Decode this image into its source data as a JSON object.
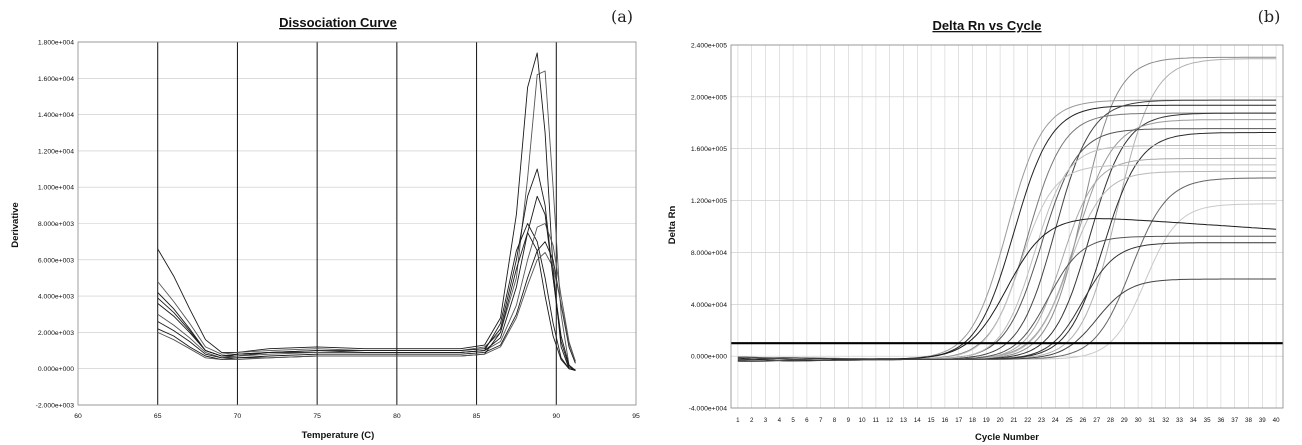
{
  "chart_data": [
    {
      "type": "line",
      "title": "Dissociation Curve",
      "panel_label": "(a)",
      "xlabel": "Temperature (C)",
      "ylabel": "Derivative",
      "xlim": [
        60,
        95
      ],
      "ylim": [
        -2000,
        18000
      ],
      "xticks": [
        "60",
        "65",
        "70",
        "75",
        "80",
        "85",
        "90",
        "95"
      ],
      "yticks": [
        "-2.000e+003",
        "0.000e+000",
        "2.000e+003",
        "4.000e+003",
        "6.000e+003",
        "8.000e+003",
        "1.000e+004",
        "1.200e+004",
        "1.400e+004",
        "1.600e+004",
        "1.800e+004"
      ],
      "vertical_lines_at": [
        65,
        70,
        75,
        80,
        85,
        90
      ],
      "grid": "horizontal",
      "series": [
        {
          "x": [
            65,
            66,
            67,
            68,
            69,
            70,
            72,
            75,
            78,
            80,
            82,
            84,
            85.5,
            86.5,
            87.5,
            88.2,
            88.8,
            89.3,
            89.8,
            90.3,
            90.8,
            91.2
          ],
          "y": [
            6600,
            5100,
            3300,
            1600,
            900,
            900,
            1100,
            1200,
            1100,
            1100,
            1100,
            1100,
            1300,
            2800,
            8500,
            15500,
            17400,
            13000,
            5500,
            1200,
            0,
            -100
          ]
        },
        {
          "x": [
            65,
            66,
            67,
            68,
            69,
            70,
            72,
            75,
            78,
            80,
            82,
            84,
            85.5,
            86.5,
            87.5,
            88.2,
            88.8,
            89.3,
            89.8,
            90.3,
            90.8,
            91.2
          ],
          "y": [
            4800,
            3700,
            2500,
            1200,
            800,
            900,
            1000,
            1100,
            1000,
            1000,
            1000,
            1000,
            1200,
            2000,
            5000,
            10500,
            16200,
            16400,
            10000,
            3000,
            200,
            -100
          ]
        },
        {
          "x": [
            65,
            66,
            67,
            68,
            69,
            70,
            72,
            75,
            78,
            80,
            82,
            84,
            85.5,
            86.5,
            87.5,
            88.2,
            88.8,
            89.3,
            89.8,
            90.3,
            90.8,
            91.2
          ],
          "y": [
            4200,
            3300,
            2200,
            1000,
            700,
            800,
            900,
            1000,
            1000,
            1000,
            1000,
            1000,
            1100,
            2200,
            6000,
            9500,
            11000,
            9000,
            5000,
            1500,
            100,
            -100
          ]
        },
        {
          "x": [
            65,
            66,
            67,
            68,
            69,
            70,
            72,
            75,
            78,
            80,
            82,
            84,
            85.5,
            86.5,
            87.5,
            88.2,
            88.8,
            89.3,
            89.8,
            90.3,
            90.8,
            91.2
          ],
          "y": [
            3600,
            2900,
            2000,
            1000,
            700,
            700,
            900,
            900,
            900,
            900,
            900,
            900,
            1000,
            2500,
            6500,
            8000,
            7000,
            5000,
            2500,
            600,
            0,
            -100
          ]
        },
        {
          "x": [
            65,
            66,
            67,
            68,
            69,
            70,
            72,
            75,
            78,
            80,
            82,
            84,
            85.5,
            86.5,
            87.5,
            88.2,
            88.8,
            89.3,
            89.8,
            90.3,
            90.8,
            91.2
          ],
          "y": [
            3000,
            2400,
            1700,
            900,
            600,
            700,
            800,
            900,
            900,
            900,
            900,
            900,
            1000,
            1500,
            3500,
            6000,
            7800,
            8000,
            6800,
            4000,
            1500,
            400
          ]
        },
        {
          "x": [
            65,
            66,
            67,
            68,
            69,
            70,
            72,
            75,
            78,
            80,
            82,
            84,
            85.5,
            86.5,
            87.5,
            88.2,
            88.8,
            89.3,
            89.8,
            90.3,
            90.8,
            91.2
          ],
          "y": [
            2600,
            2100,
            1500,
            800,
            600,
            600,
            700,
            800,
            800,
            800,
            800,
            800,
            900,
            1300,
            3000,
            5000,
            6500,
            7000,
            6000,
            3500,
            1200,
            300
          ]
        },
        {
          "x": [
            65,
            66,
            67,
            68,
            69,
            70,
            72,
            75,
            78,
            80,
            82,
            84,
            85.5,
            86.5,
            87.5,
            88.2,
            88.8,
            89.3,
            89.8,
            90.3,
            90.8,
            91.2
          ],
          "y": [
            2200,
            1800,
            1200,
            700,
            500,
            600,
            600,
            700,
            700,
            700,
            700,
            700,
            800,
            2000,
            5500,
            7500,
            6500,
            4000,
            1800,
            500,
            0,
            -50
          ]
        },
        {
          "x": [
            65,
            66,
            67,
            68,
            69,
            70,
            72,
            75,
            78,
            80,
            82,
            84,
            85.5,
            86.5,
            87.5,
            88.2,
            88.8,
            89.3,
            89.8,
            90.3,
            90.8,
            91.2
          ],
          "y": [
            2000,
            1600,
            1100,
            600,
            500,
            500,
            600,
            700,
            700,
            700,
            700,
            700,
            800,
            1200,
            2800,
            4600,
            6000,
            6400,
            5600,
            3600,
            1400,
            400
          ]
        },
        {
          "x": [
            65,
            66,
            67,
            68,
            69,
            70,
            72,
            75,
            78,
            80,
            82,
            84,
            85.5,
            86.5,
            87.5,
            88.2,
            88.8,
            89.3,
            89.8,
            90.3,
            90.8,
            91.2
          ],
          "y": [
            3900,
            3100,
            2100,
            1000,
            700,
            800,
            900,
            1000,
            900,
            900,
            900,
            900,
            1000,
            1700,
            4500,
            7500,
            9500,
            8500,
            5000,
            1800,
            200,
            -100
          ]
        }
      ]
    },
    {
      "type": "line",
      "title": "Delta Rn vs Cycle",
      "panel_label": "(b)",
      "xlabel": "Cycle Number",
      "ylabel": "Delta Rn",
      "xlim": [
        0.5,
        40.5
      ],
      "ylim": [
        -40000,
        240000
      ],
      "xticks": [
        "1",
        "2",
        "3",
        "4",
        "5",
        "6",
        "7",
        "8",
        "9",
        "10",
        "11",
        "12",
        "13",
        "14",
        "15",
        "16",
        "17",
        "18",
        "19",
        "20",
        "21",
        "22",
        "23",
        "24",
        "25",
        "26",
        "27",
        "28",
        "29",
        "30",
        "31",
        "32",
        "33",
        "34",
        "35",
        "36",
        "37",
        "38",
        "39",
        "40"
      ],
      "yticks": [
        "-4.000e+004",
        "0.000e+000",
        "4.000e+004",
        "8.000e+004",
        "1.200e+005",
        "1.600e+005",
        "2.000e+005",
        "2.400e+005"
      ],
      "threshold": 10000,
      "grid": "both",
      "series": [
        {
          "plateau": 233000,
          "midpoint": 26.0,
          "slope": 1.25,
          "color": "#8a8a8a"
        },
        {
          "plateau": 232000,
          "midpoint": 28.5,
          "slope": 1.3,
          "color": "#b0b0b0"
        },
        {
          "plateau": 200000,
          "midpoint": 20.5,
          "slope": 1.3,
          "color": "#9a9a9a"
        },
        {
          "plateau": 196000,
          "midpoint": 21.0,
          "slope": 1.35,
          "color": "#222222"
        },
        {
          "plateau": 200000,
          "midpoint": 24.0,
          "slope": 1.3,
          "color": "#444444"
        },
        {
          "plateau": 190000,
          "midpoint": 22.0,
          "slope": 1.3,
          "color": "#777777"
        },
        {
          "plateau": 190000,
          "midpoint": 26.5,
          "slope": 1.3,
          "color": "#333333"
        },
        {
          "plateau": 185000,
          "midpoint": 25.5,
          "slope": 1.35,
          "color": "#999999"
        },
        {
          "plateau": 178000,
          "midpoint": 23.0,
          "slope": 1.3,
          "color": "#555555"
        },
        {
          "plateau": 175000,
          "midpoint": 27.5,
          "slope": 1.3,
          "color": "#2a2a2a"
        },
        {
          "plateau": 165000,
          "midpoint": 22.5,
          "slope": 1.2,
          "color": "#bdbdbd"
        },
        {
          "plateau": 155000,
          "midpoint": 24.5,
          "slope": 1.2,
          "color": "#a8a8a8"
        },
        {
          "plateau": 150000,
          "midpoint": 21.5,
          "slope": 1.2,
          "color": "#c4c4c4"
        },
        {
          "plateau": 145000,
          "midpoint": 25.0,
          "slope": 1.25,
          "color": "#b8b8b8"
        },
        {
          "plateau": 140000,
          "midpoint": 29.5,
          "slope": 1.3,
          "color": "#666666"
        },
        {
          "plateau": 120000,
          "midpoint": 30.5,
          "slope": 1.2,
          "color": "#c9c9c9"
        },
        {
          "plateau": 110000,
          "midpoint": 20.5,
          "slope": 1.4,
          "drift": -10000,
          "color": "#1a1a1a"
        },
        {
          "plateau": 95000,
          "midpoint": 23.5,
          "slope": 1.2,
          "color": "#555555"
        },
        {
          "plateau": 90000,
          "midpoint": 26.0,
          "slope": 1.2,
          "color": "#333333"
        },
        {
          "plateau": 62000,
          "midpoint": 27.0,
          "slope": 1.2,
          "color": "#444444"
        }
      ]
    }
  ]
}
